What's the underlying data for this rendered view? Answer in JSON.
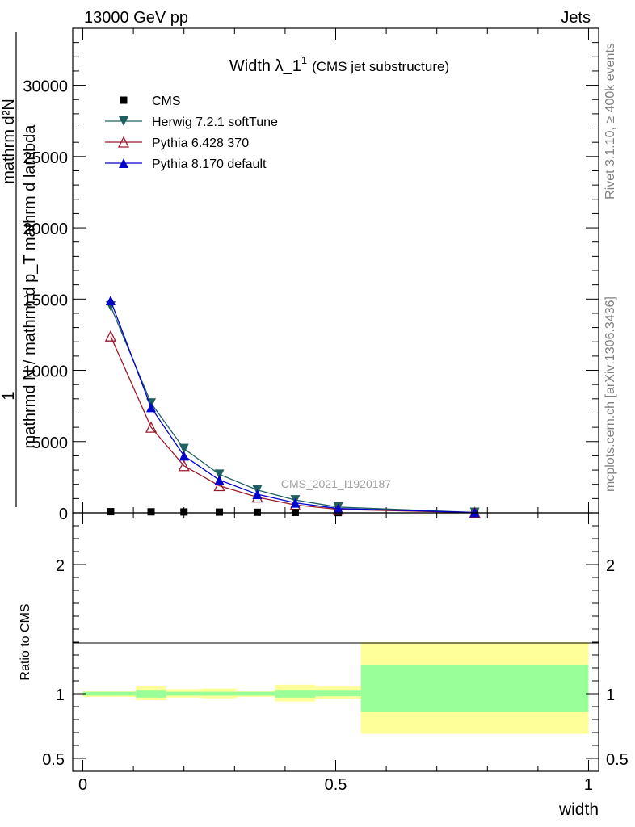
{
  "header": {
    "left": "13000 GeV pp",
    "right": "Jets"
  },
  "title": {
    "main": "Width λ_1",
    "sup": "1",
    "sub": "(CMS jet substructure)"
  },
  "side_labels": {
    "top": "Rivet 3.1.10, ≥ 400k events",
    "bottom": "mcplots.cern.ch [arXiv:1306.3436]"
  },
  "watermark": "CMS_2021_I1920187",
  "ylabel": {
    "numerator": "mathrm d²N",
    "denominator": "mathrm d p_T mathrm d lambda",
    "prefix": "1",
    "prefix_den": "mathrmd N / mathrm d p_T mathrm d lambda"
  },
  "xlabel": "width",
  "ratio_ylabel": "Ratio to CMS",
  "colors": {
    "herwig": "#1f5f5f",
    "pythia6": "#9b1a2a",
    "pythia8": "#0000cc",
    "band_inner": "#99ff99",
    "band_outer": "#ffff99"
  },
  "chart_data": {
    "type": "line",
    "main": {
      "xlim": [
        -0.02,
        1.02
      ],
      "ylim": [
        0,
        34000
      ],
      "x_ticks": [
        0,
        0.5,
        1
      ],
      "x_tick_labels": [
        "0",
        "0.5",
        "1"
      ],
      "y_ticks": [
        0,
        5000,
        10000,
        15000,
        20000,
        25000,
        30000
      ],
      "y_tick_labels": [
        "0",
        "5000",
        "10000",
        "15000",
        "20000",
        "25000",
        "30000"
      ],
      "x": [
        0.055,
        0.135,
        0.2,
        0.27,
        0.345,
        0.42,
        0.505,
        0.775
      ],
      "series": [
        {
          "name": "CMS",
          "marker": "square",
          "values": [
            80,
            70,
            60,
            50,
            40,
            30,
            20,
            5
          ]
        },
        {
          "name": "Herwig 7.2.1 softTune",
          "marker": "triangle-down",
          "values": [
            14500,
            7700,
            4500,
            2700,
            1600,
            900,
            400,
            30
          ]
        },
        {
          "name": "Pythia 6.428 370",
          "marker": "triangle-open",
          "values": [
            12400,
            6000,
            3300,
            1900,
            1100,
            550,
            240,
            20
          ]
        },
        {
          "name": "Pythia 8.170 default",
          "marker": "triangle-up",
          "values": [
            14900,
            7400,
            4000,
            2300,
            1300,
            700,
            300,
            25
          ]
        }
      ]
    },
    "ratio": {
      "ylim": [
        0.4,
        2.4
      ],
      "y_ticks": [
        0.5,
        1,
        2
      ],
      "y_tick_labels": [
        "0.5",
        "1",
        "2"
      ],
      "bins": [
        {
          "lo": 0.0,
          "hi": 0.105,
          "inner": [
            0.985,
            1.015
          ],
          "outer": [
            0.975,
            1.025
          ]
        },
        {
          "lo": 0.105,
          "hi": 0.165,
          "inner": [
            0.97,
            1.03
          ],
          "outer": [
            0.95,
            1.06
          ]
        },
        {
          "lo": 0.165,
          "hi": 0.235,
          "inner": [
            0.985,
            1.015
          ],
          "outer": [
            0.97,
            1.035
          ]
        },
        {
          "lo": 0.235,
          "hi": 0.305,
          "inner": [
            0.985,
            1.015
          ],
          "outer": [
            0.965,
            1.04
          ]
        },
        {
          "lo": 0.305,
          "hi": 0.38,
          "inner": [
            0.985,
            1.015
          ],
          "outer": [
            0.975,
            1.025
          ]
        },
        {
          "lo": 0.38,
          "hi": 0.46,
          "inner": [
            0.97,
            1.03
          ],
          "outer": [
            0.94,
            1.07
          ]
        },
        {
          "lo": 0.46,
          "hi": 0.55,
          "inner": [
            0.98,
            1.03
          ],
          "outer": [
            0.96,
            1.055
          ]
        },
        {
          "lo": 0.55,
          "hi": 1.0,
          "inner": [
            0.86,
            1.22
          ],
          "outer": [
            0.69,
            1.4
          ]
        }
      ]
    }
  }
}
